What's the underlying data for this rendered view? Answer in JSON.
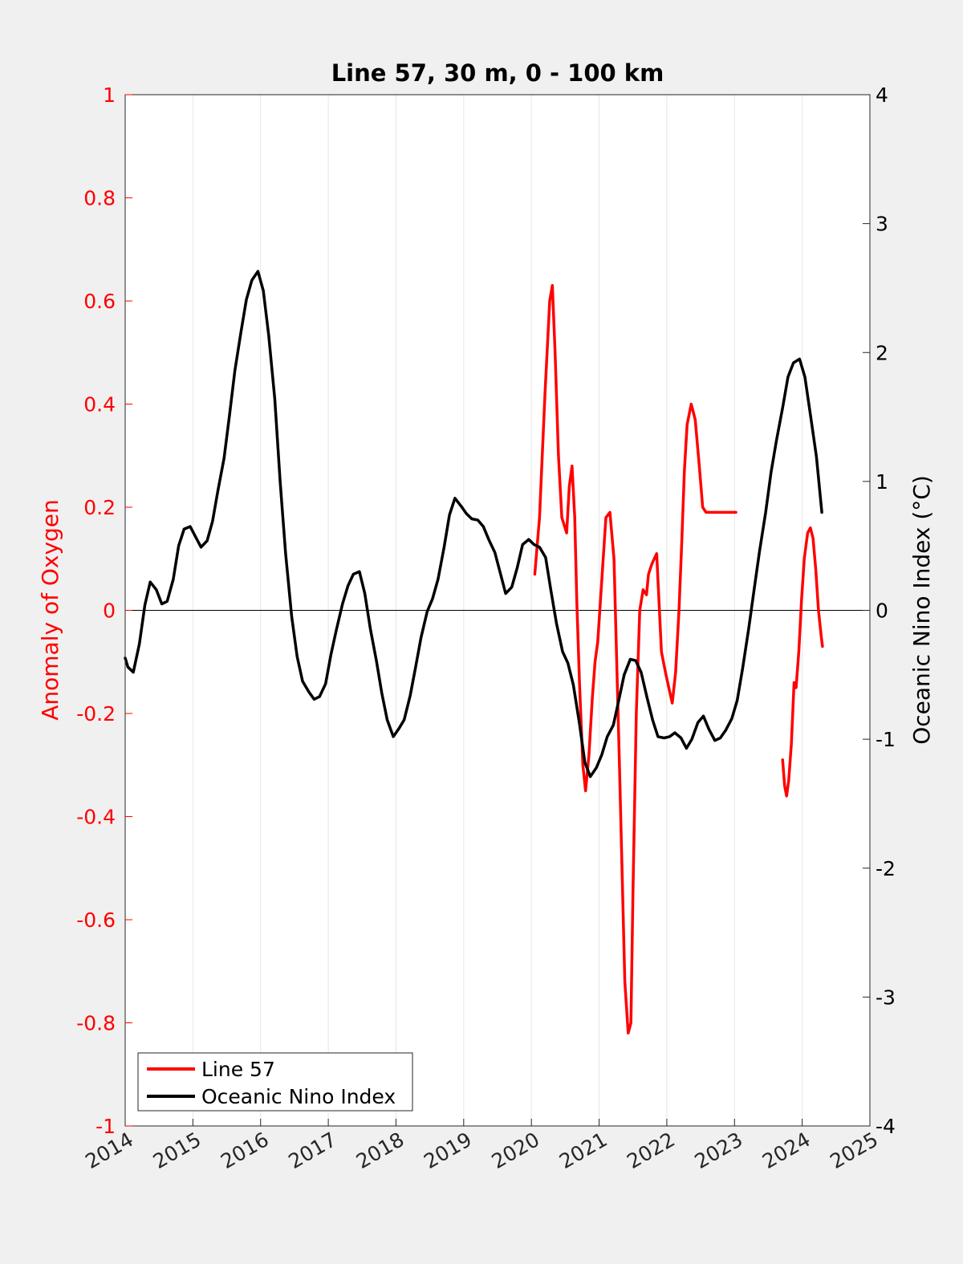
{
  "chart_data": {
    "type": "line",
    "title": "Line 57, 30 m, 0 - 100 km",
    "xlim": [
      2014,
      2025
    ],
    "x_ticks": [
      2014,
      2015,
      2016,
      2017,
      2018,
      2019,
      2020,
      2021,
      2022,
      2023,
      2024,
      2025
    ],
    "x_tick_labels": [
      "2014",
      "2015",
      "2016",
      "2017",
      "2018",
      "2019",
      "2020",
      "2021",
      "2022",
      "2023",
      "2024",
      "2025"
    ],
    "y_left": {
      "label": "Anomaly of Oxygen",
      "ylim": [
        -1,
        1
      ],
      "ticks": [
        -1,
        -0.8,
        -0.6,
        -0.4,
        -0.2,
        0,
        0.2,
        0.4,
        0.6,
        0.8,
        1
      ],
      "tick_labels": [
        "-1",
        "-0.8",
        "-0.6",
        "-0.4",
        "-0.2",
        "0",
        "0.2",
        "0.4",
        "0.6",
        "0.8",
        "1"
      ],
      "color": "#ff0000"
    },
    "y_right": {
      "label": "Oceanic Nino Index (°C)",
      "ylim": [
        -4,
        4
      ],
      "ticks": [
        -4,
        -3,
        -2,
        -1,
        0,
        1,
        2,
        3,
        4
      ],
      "tick_labels": [
        "-4",
        "-3",
        "-2",
        "-1",
        "0",
        "1",
        "2",
        "3",
        "4"
      ],
      "color": "#000000"
    },
    "grid": "vertical",
    "legend": {
      "placement": "bottom-left"
    },
    "series": [
      {
        "name": "Line 57",
        "axis": "left",
        "color": "#ff0000",
        "segments": [
          {
            "x": [
              2020.05,
              2020.12,
              2020.2,
              2020.27,
              2020.31,
              2020.35,
              2020.4,
              2020.45,
              2020.52,
              2020.56,
              2020.6,
              2020.64,
              2020.67,
              2020.71,
              2020.76,
              2020.8,
              2020.85,
              2020.9,
              2020.94,
              2020.98,
              2021.05,
              2021.1,
              2021.16,
              2021.22,
              2021.3,
              2021.38,
              2021.43,
              2021.47,
              2021.5,
              2021.55,
              2021.6,
              2021.65,
              2021.7,
              2021.73,
              2021.78,
              2021.85,
              2021.92,
              2021.98,
              2022.03,
              2022.08,
              2022.13,
              2022.18,
              2022.22,
              2022.26,
              2022.3,
              2022.36,
              2022.42,
              2022.48,
              2022.53,
              2022.58,
              2022.65,
              2022.73,
              2022.8,
              2022.85,
              2022.9,
              2022.95,
              2023.02
            ],
            "y": [
              0.07,
              0.18,
              0.42,
              0.6,
              0.63,
              0.5,
              0.3,
              0.18,
              0.15,
              0.24,
              0.28,
              0.18,
              0.02,
              -0.14,
              -0.3,
              -0.35,
              -0.28,
              -0.17,
              -0.1,
              -0.06,
              0.08,
              0.18,
              0.19,
              0.1,
              -0.3,
              -0.72,
              -0.82,
              -0.8,
              -0.55,
              -0.2,
              0.0,
              0.04,
              0.03,
              0.07,
              0.09,
              0.11,
              -0.08,
              -0.12,
              -0.15,
              -0.18,
              -0.12,
              0.0,
              0.13,
              0.27,
              0.36,
              0.4,
              0.37,
              0.28,
              0.2,
              0.19,
              0.19,
              0.19,
              0.19,
              0.19,
              0.19,
              0.19,
              0.19
            ]
          },
          {
            "x": [
              2023.71,
              2023.74,
              2023.77,
              2023.8,
              2023.84,
              2023.88,
              2023.91,
              2023.95,
              2023.99,
              2024.03,
              2024.08,
              2024.12,
              2024.16,
              2024.2,
              2024.24,
              2024.28,
              2024.3
            ],
            "y": [
              -0.29,
              -0.34,
              -0.36,
              -0.33,
              -0.26,
              -0.14,
              -0.15,
              -0.08,
              0.02,
              0.1,
              0.15,
              0.16,
              0.14,
              0.08,
              0.0,
              -0.05,
              -0.07
            ]
          }
        ]
      },
      {
        "name": "Oceanic Nino Index",
        "axis": "right",
        "color": "#000000",
        "segments": [
          {
            "x": [
              2014.0,
              2014.04,
              2014.12,
              2014.21,
              2014.29,
              2014.37,
              2014.46,
              2014.54,
              2014.62,
              2014.71,
              2014.79,
              2014.87,
              2014.96,
              2015.04,
              2015.12,
              2015.21,
              2015.29,
              2015.37,
              2015.46,
              2015.54,
              2015.62,
              2015.71,
              2015.79,
              2015.87,
              2015.96,
              2016.04,
              2016.12,
              2016.21,
              2016.29,
              2016.37,
              2016.46,
              2016.54,
              2016.62,
              2016.71,
              2016.79,
              2016.87,
              2016.96,
              2017.04,
              2017.12,
              2017.21,
              2017.29,
              2017.37,
              2017.46,
              2017.54,
              2017.62,
              2017.71,
              2017.79,
              2017.87,
              2017.96,
              2018.04,
              2018.12,
              2018.21,
              2018.29,
              2018.37,
              2018.46,
              2018.54,
              2018.62,
              2018.71,
              2018.79,
              2018.87,
              2018.96,
              2019.04,
              2019.12,
              2019.21,
              2019.29,
              2019.37,
              2019.46,
              2019.54,
              2019.62,
              2019.71,
              2019.79,
              2019.87,
              2019.96,
              2020.04,
              2020.12,
              2020.21,
              2020.29,
              2020.37,
              2020.46,
              2020.54,
              2020.62,
              2020.71,
              2020.79,
              2020.87,
              2020.96,
              2021.04,
              2021.12,
              2021.21,
              2021.29,
              2021.37,
              2021.46,
              2021.54,
              2021.62,
              2021.71,
              2021.79,
              2021.87,
              2021.96,
              2022.04,
              2022.12,
              2022.21,
              2022.29,
              2022.37,
              2022.46,
              2022.54,
              2022.62,
              2022.71,
              2022.79,
              2022.87,
              2022.96,
              2023.04,
              2023.12,
              2023.21,
              2023.29,
              2023.37,
              2023.46,
              2023.54,
              2023.62,
              2023.71,
              2023.79,
              2023.87,
              2023.96,
              2024.04,
              2024.12,
              2024.21,
              2024.29
            ],
            "y": [
              -0.37,
              -0.44,
              -0.48,
              -0.26,
              0.04,
              0.22,
              0.16,
              0.05,
              0.07,
              0.24,
              0.5,
              0.63,
              0.65,
              0.57,
              0.49,
              0.54,
              0.69,
              0.93,
              1.18,
              1.51,
              1.86,
              2.16,
              2.41,
              2.56,
              2.63,
              2.48,
              2.13,
              1.64,
              0.99,
              0.44,
              -0.05,
              -0.36,
              -0.55,
              -0.63,
              -0.69,
              -0.67,
              -0.57,
              -0.34,
              -0.15,
              0.05,
              0.19,
              0.28,
              0.3,
              0.13,
              -0.14,
              -0.39,
              -0.64,
              -0.85,
              -0.98,
              -0.92,
              -0.85,
              -0.66,
              -0.44,
              -0.21,
              -0.01,
              0.09,
              0.24,
              0.49,
              0.74,
              0.87,
              0.81,
              0.75,
              0.71,
              0.7,
              0.65,
              0.55,
              0.45,
              0.29,
              0.13,
              0.18,
              0.33,
              0.51,
              0.55,
              0.51,
              0.49,
              0.41,
              0.15,
              -0.1,
              -0.32,
              -0.41,
              -0.58,
              -0.88,
              -1.18,
              -1.29,
              -1.22,
              -1.12,
              -0.98,
              -0.89,
              -0.7,
              -0.5,
              -0.38,
              -0.39,
              -0.48,
              -0.68,
              -0.85,
              -0.98,
              -0.99,
              -0.98,
              -0.95,
              -0.99,
              -1.07,
              -1.0,
              -0.87,
              -0.82,
              -0.92,
              -1.01,
              -0.99,
              -0.93,
              -0.84,
              -0.7,
              -0.45,
              -0.14,
              0.16,
              0.46,
              0.76,
              1.07,
              1.32,
              1.57,
              1.81,
              1.92,
              1.95,
              1.81,
              1.52,
              1.19,
              0.76
            ]
          }
        ]
      }
    ]
  }
}
